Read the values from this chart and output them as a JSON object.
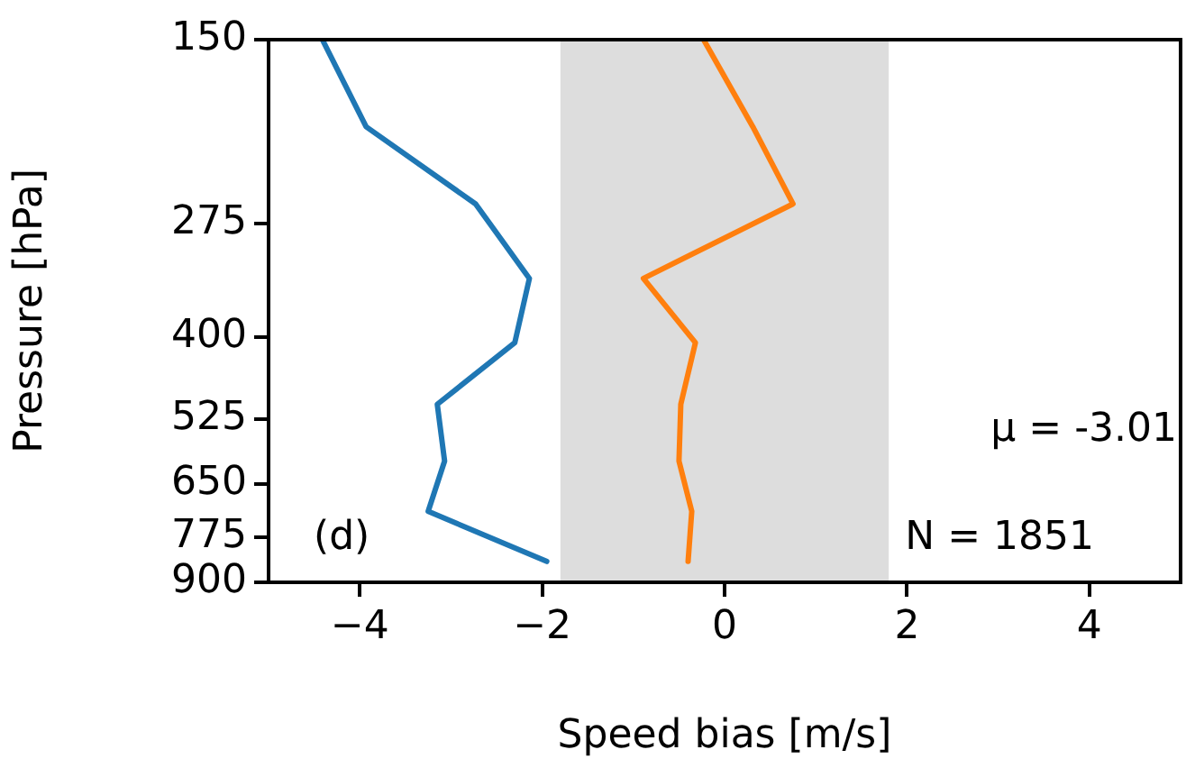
{
  "chart_data": {
    "type": "line",
    "xlabel": "Speed bias [m/s]",
    "ylabel": "Pressure [hPa]",
    "series": [
      {
        "color": "#1f77b4",
        "x": [
          -4.41,
          -3.93,
          -2.73,
          -2.14,
          -2.3,
          -3.15,
          -3.07,
          -3.25,
          -1.95
        ],
        "values": [
          150,
          200,
          258,
          330,
          408,
          500,
          603,
          712,
          840
        ]
      },
      {
        "color": "#ff7f0e",
        "x": [
          -0.23,
          0.31,
          0.75,
          -0.89,
          -0.32,
          -0.48,
          -0.5,
          -0.36,
          -0.4
        ],
        "values": [
          150,
          200,
          258,
          330,
          408,
          500,
          603,
          712,
          840
        ]
      }
    ],
    "xlim": [
      -5,
      5
    ],
    "xticks": [
      -4,
      -2,
      0,
      2,
      4
    ],
    "ylim": [
      900,
      150
    ],
    "yticks": [
      150,
      275,
      400,
      525,
      650,
      775,
      900
    ],
    "log": "y",
    "bands": [
      {
        "axis": "x",
        "from": -1.8,
        "to": 1.8,
        "color": "#dddddd"
      }
    ],
    "annotations": [
      "(d)",
      "μ = -3.01",
      "N = 1851"
    ],
    "legend": false,
    "marker": "none",
    "line_style": "solid"
  }
}
